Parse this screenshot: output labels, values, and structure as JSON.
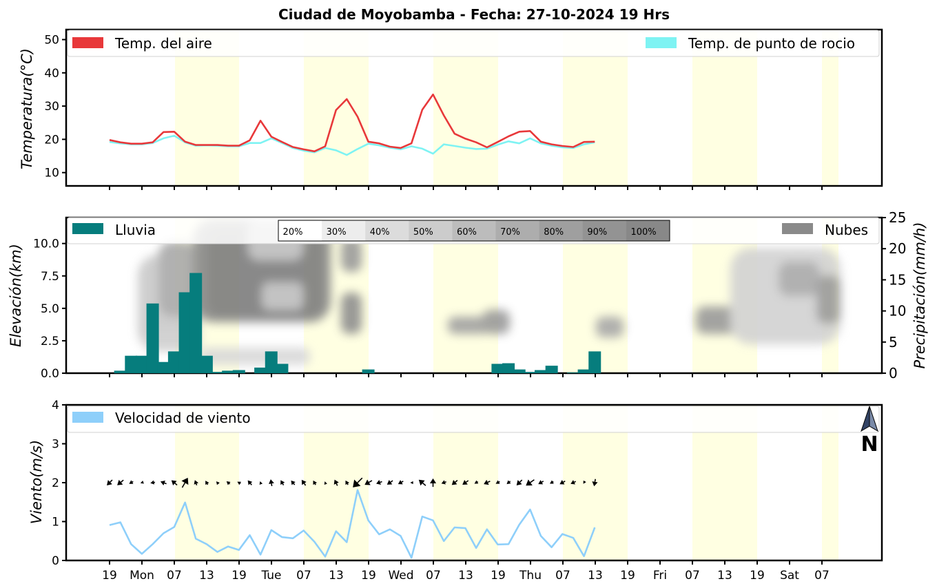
{
  "title": "Ciudad de Moyobamba   -   Fecha: 27-10-2024 19 Hrs",
  "x_tick_labels": [
    "19",
    "Mon",
    "07",
    "13",
    "19",
    "Tue",
    "07",
    "13",
    "19",
    "Wed",
    "07",
    "13",
    "19",
    "Thu",
    "07",
    "13",
    "19",
    "Fri",
    "07",
    "13",
    "19",
    "Sat",
    "07"
  ],
  "chart_data": [
    {
      "type": "line",
      "title": "Temperature",
      "ylabel": "Temperatura(°C)",
      "ylim": [
        6,
        53
      ],
      "yticks": [
        10,
        20,
        30,
        40,
        50
      ],
      "x_step_hours": 3,
      "legend": {
        "left": "Temp. del aire",
        "right": "Temp. de punto de rocio"
      },
      "series": [
        {
          "name": "Temp. del aire",
          "color": "#e8383a",
          "values": [
            19.8,
            19.1,
            18.7,
            18.7,
            19.1,
            22.2,
            22.3,
            19.3,
            18.3,
            18.3,
            18.3,
            18.1,
            18.1,
            19.7,
            25.6,
            20.8,
            19.2,
            17.7,
            17.0,
            16.4,
            17.9,
            28.8,
            32.1,
            26.8,
            19.3,
            18.8,
            17.8,
            17.4,
            18.8,
            28.9,
            33.5,
            27.2,
            21.7,
            20.2,
            19.1,
            17.6,
            19.2,
            20.9,
            22.3,
            22.5,
            19.3,
            18.5,
            18.0,
            17.7,
            19.2,
            19.3
          ]
        },
        {
          "name": "Temp. de punto de rocio",
          "color": "#7ef3f3",
          "values": [
            19.2,
            18.8,
            18.5,
            18.5,
            18.9,
            20.3,
            21.1,
            19.1,
            18.1,
            18.2,
            18.1,
            17.9,
            17.9,
            18.9,
            18.9,
            20.3,
            18.9,
            17.4,
            16.6,
            16.1,
            17.4,
            16.7,
            15.3,
            17.1,
            18.7,
            18.2,
            17.5,
            17.0,
            17.9,
            17.2,
            15.7,
            18.5,
            18.0,
            17.5,
            17.1,
            17.2,
            18.4,
            19.4,
            18.8,
            20.3,
            18.8,
            18.1,
            17.6,
            17.4,
            18.5,
            19.1
          ]
        }
      ]
    },
    {
      "type": "bar",
      "title": "Precipitation and clouds",
      "ylabel_left": "Elevación(km)",
      "ylabel_right": "Precipitación(mm/h)",
      "ylim_left": [
        0,
        12
      ],
      "ylim_right": [
        0,
        25
      ],
      "yticks_left": [
        "0.0",
        "2.5",
        "5.0",
        "7.5",
        "10.0"
      ],
      "yticks_right": [
        0,
        5,
        10,
        15,
        20,
        25
      ],
      "legend": {
        "left": "Lluvia",
        "right": "Nubes"
      },
      "colorbar_labels": [
        "20%",
        "30%",
        "40%",
        "50%",
        "60%",
        "70%",
        "80%",
        "90%",
        "100%"
      ],
      "bar_color": "#067d7d",
      "values": [
        0,
        0.4,
        2.8,
        2.8,
        11.2,
        1.8,
        3.5,
        13.0,
        16.1,
        2.8,
        0.2,
        0.4,
        0.5,
        0,
        0.9,
        3.5,
        1.5,
        0,
        0,
        0,
        0,
        0,
        0,
        0,
        0.6,
        0,
        0,
        0,
        0,
        0,
        0,
        0,
        0,
        0,
        0,
        0,
        1.5,
        1.6,
        0.6,
        0.2,
        0.5,
        1.2,
        0,
        0.1,
        0.6,
        3.5
      ]
    },
    {
      "type": "line",
      "title": "Wind",
      "ylabel": "Viento(m/s)",
      "ylim": [
        0,
        4
      ],
      "yticks": [
        0,
        1,
        2,
        3,
        4
      ],
      "legend": {
        "left": "Velocidad de viento"
      },
      "north_label": "N",
      "arrow_row_value": 2,
      "series": [
        {
          "name": "Velocidad de viento",
          "color": "#8ecffa",
          "values": [
            0.91,
            0.98,
            0.42,
            0.17,
            0.42,
            0.7,
            0.86,
            1.49,
            0.56,
            0.42,
            0.22,
            0.36,
            0.27,
            0.65,
            0.15,
            0.78,
            0.6,
            0.57,
            0.77,
            0.48,
            0.1,
            0.75,
            0.47,
            1.81,
            1.03,
            0.67,
            0.8,
            0.63,
            0.07,
            1.13,
            1.03,
            0.5,
            0.85,
            0.83,
            0.32,
            0.8,
            0.41,
            0.42,
            0.92,
            1.31,
            0.63,
            0.34,
            0.68,
            0.58,
            0.11,
            0.85
          ]
        }
      ],
      "wind_dir_deg": [
        135,
        140,
        150,
        160,
        170,
        200,
        220,
        300,
        250,
        240,
        230,
        220,
        210,
        230,
        250,
        260,
        240,
        230,
        235,
        240,
        250,
        245,
        240,
        135,
        150,
        160,
        145,
        150,
        180,
        220,
        270,
        160,
        140,
        145,
        150,
        155,
        150,
        140,
        135,
        145,
        150,
        150,
        150,
        155,
        120,
        100
      ]
    }
  ]
}
